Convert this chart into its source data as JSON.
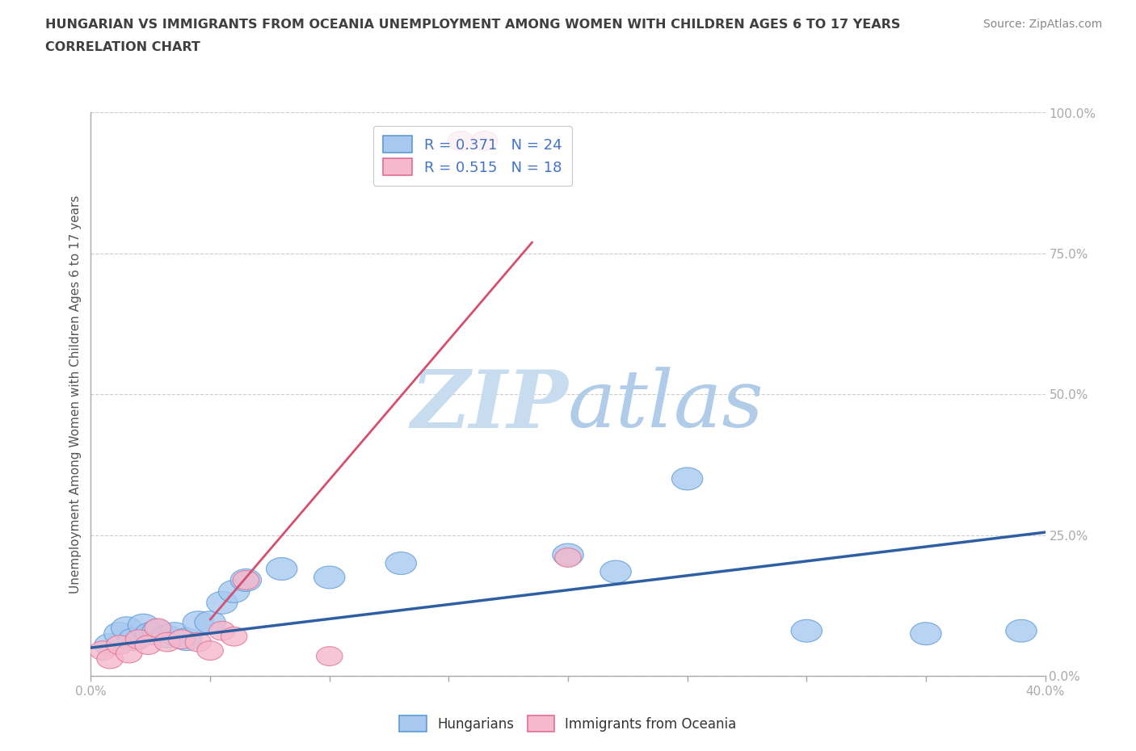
{
  "title_line1": "HUNGARIAN VS IMMIGRANTS FROM OCEANIA UNEMPLOYMENT AMONG WOMEN WITH CHILDREN AGES 6 TO 17 YEARS",
  "title_line2": "CORRELATION CHART",
  "source": "Source: ZipAtlas.com",
  "ylabel": "Unemployment Among Women with Children Ages 6 to 17 years",
  "xlim": [
    0.0,
    0.4
  ],
  "ylim": [
    0.0,
    1.0
  ],
  "xticks": [
    0.0,
    0.05,
    0.1,
    0.15,
    0.2,
    0.25,
    0.3,
    0.35,
    0.4
  ],
  "yticks": [
    0.0,
    0.25,
    0.5,
    0.75,
    1.0
  ],
  "ytick_labels": [
    "0.0%",
    "25.0%",
    "50.0%",
    "75.0%",
    "100.0%"
  ],
  "xtick_labels": [
    "0.0%",
    "",
    "",
    "",
    "",
    "",
    "",
    "",
    "40.0%"
  ],
  "blue_color": "#A8C8F0",
  "pink_color": "#F5B8CC",
  "blue_edge_color": "#5B9BD5",
  "pink_edge_color": "#E07090",
  "blue_line_color": "#2E5FA3",
  "pink_line_color": "#D45070",
  "title_color": "#404040",
  "tick_color": "#4472C4",
  "watermark_color": "#DCE9F7",
  "legend_r_blue": "R = 0.371",
  "legend_n_blue": "N = 24",
  "legend_r_pink": "R = 0.515",
  "legend_n_pink": "N = 18",
  "blue_x": [
    0.008,
    0.012,
    0.015,
    0.018,
    0.022,
    0.025,
    0.028,
    0.032,
    0.035,
    0.04,
    0.045,
    0.05,
    0.055,
    0.06,
    0.065,
    0.08,
    0.1,
    0.13,
    0.2,
    0.22,
    0.25,
    0.3,
    0.35,
    0.39
  ],
  "blue_y": [
    0.055,
    0.075,
    0.085,
    0.065,
    0.09,
    0.075,
    0.08,
    0.07,
    0.075,
    0.065,
    0.095,
    0.095,
    0.13,
    0.15,
    0.17,
    0.19,
    0.175,
    0.2,
    0.215,
    0.185,
    0.35,
    0.08,
    0.075,
    0.08
  ],
  "pink_x": [
    0.005,
    0.008,
    0.012,
    0.016,
    0.02,
    0.024,
    0.028,
    0.032,
    0.038,
    0.045,
    0.05,
    0.055,
    0.06,
    0.065,
    0.1,
    0.155,
    0.165,
    0.2
  ],
  "pink_y": [
    0.045,
    0.03,
    0.055,
    0.04,
    0.065,
    0.055,
    0.085,
    0.06,
    0.065,
    0.06,
    0.045,
    0.08,
    0.07,
    0.17,
    0.035,
    0.95,
    0.95,
    0.21
  ],
  "blue_trend_x": [
    0.0,
    0.4
  ],
  "blue_trend_y": [
    0.05,
    0.255
  ],
  "pink_trend_x": [
    0.05,
    0.185
  ],
  "pink_trend_y": [
    0.1,
    0.77
  ],
  "background_color": "#FFFFFF",
  "grid_color": "#CCCCCC"
}
